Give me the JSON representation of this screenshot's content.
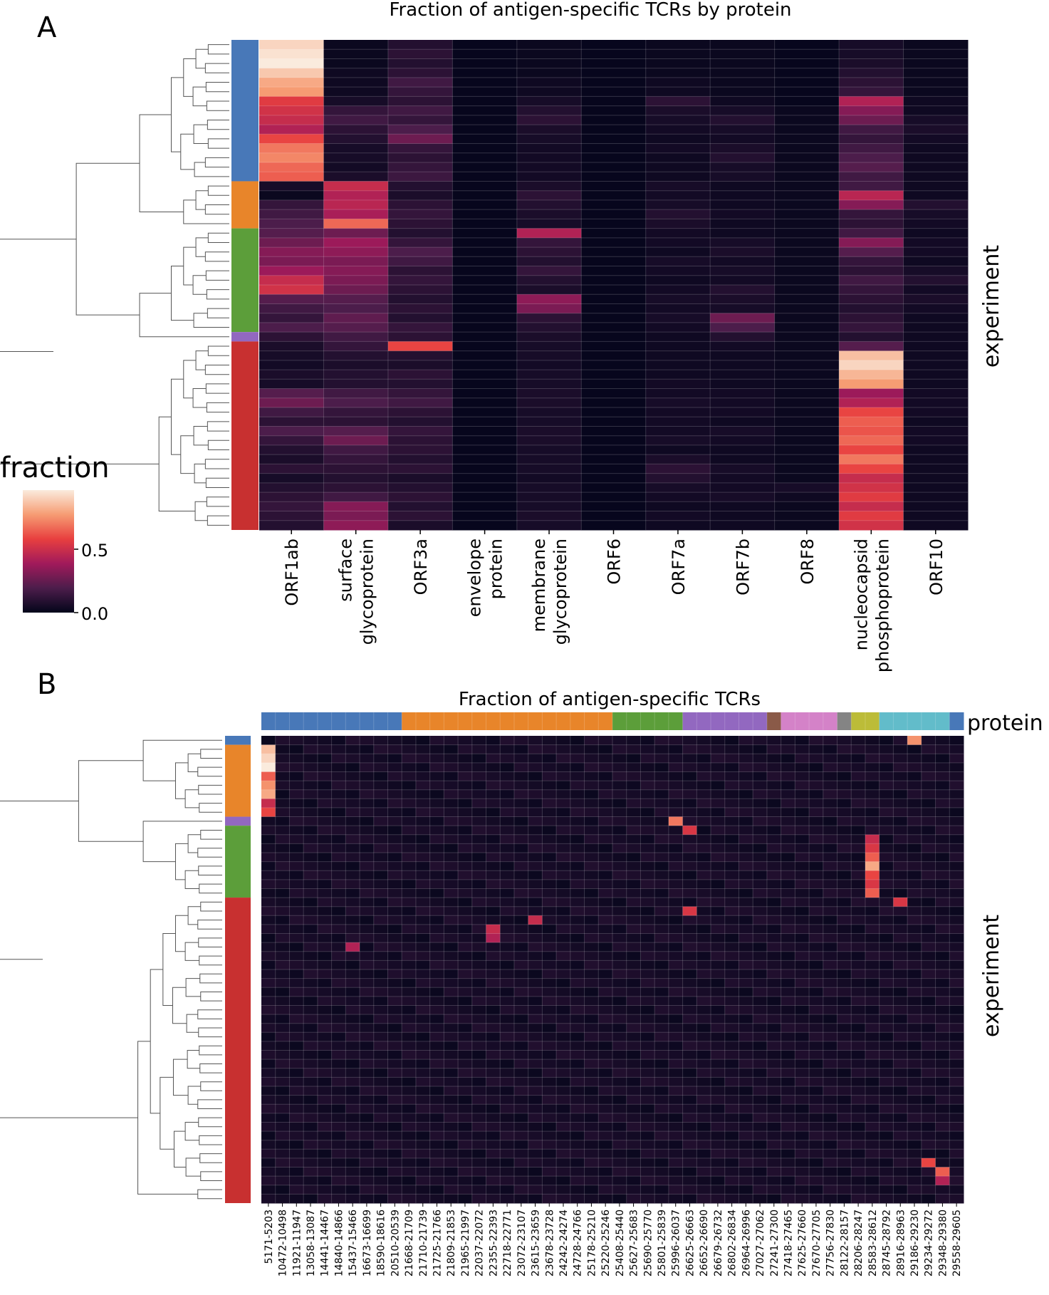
{
  "panels": {
    "a_label": "A",
    "b_label": "B"
  },
  "colorbar": {
    "title": "fraction",
    "ticks": [
      "0.5",
      "0.0"
    ],
    "stops": [
      "#03051a",
      "#4c1d4b",
      "#a11a5b",
      "#e83f3f",
      "#f69c73",
      "#faebdd"
    ]
  },
  "chart_data": [
    {
      "type": "heatmap",
      "title": "Fraction of antigen-specific TCRs by protein",
      "ylabel": "experiment",
      "categories": [
        "ORF1ab",
        "surface glycoprotein",
        "ORF3a",
        "envelope protein",
        "membrane glycoprotein",
        "ORF6",
        "ORF7a",
        "ORF7b",
        "ORF8",
        "nucleocapsid phosphoprotein",
        "ORF10"
      ],
      "tick_labels": [
        [
          "ORF1ab"
        ],
        [
          "surface",
          "glycoprotein"
        ],
        [
          "ORF3a"
        ],
        [
          "envelope",
          "protein"
        ],
        [
          "membrane",
          "glycoprotein"
        ],
        [
          "ORF6"
        ],
        [
          "ORF7a"
        ],
        [
          "ORF7b"
        ],
        [
          "ORF8"
        ],
        [
          "nucleocapsid",
          "phosphoprotein"
        ],
        [
          "ORF10"
        ]
      ],
      "row_count": 52,
      "clusters": [
        {
          "color": "#4878b8",
          "rows": 15
        },
        {
          "color": "#e8852a",
          "rows": 5
        },
        {
          "color": "#5c9e3a",
          "rows": 11
        },
        {
          "color": "#9268c0",
          "rows": 1
        },
        {
          "color": "#c83030",
          "rows": 20
        }
      ],
      "values": [
        [
          0.85,
          0.02,
          0.08,
          0.01,
          0.02,
          0.01,
          0.02,
          0.02,
          0.01,
          0.05,
          0.02
        ],
        [
          0.88,
          0.02,
          0.1,
          0.01,
          0.02,
          0.01,
          0.02,
          0.02,
          0.01,
          0.05,
          0.02
        ],
        [
          0.9,
          0.02,
          0.08,
          0.01,
          0.02,
          0.01,
          0.02,
          0.02,
          0.01,
          0.06,
          0.02
        ],
        [
          0.82,
          0.03,
          0.1,
          0.01,
          0.02,
          0.01,
          0.02,
          0.02,
          0.01,
          0.08,
          0.02
        ],
        [
          0.75,
          0.03,
          0.15,
          0.01,
          0.03,
          0.01,
          0.03,
          0.02,
          0.01,
          0.1,
          0.02
        ],
        [
          0.72,
          0.03,
          0.12,
          0.01,
          0.03,
          0.01,
          0.03,
          0.02,
          0.01,
          0.12,
          0.02
        ],
        [
          0.52,
          0.05,
          0.1,
          0.01,
          0.05,
          0.01,
          0.1,
          0.03,
          0.01,
          0.4,
          0.03
        ],
        [
          0.48,
          0.12,
          0.15,
          0.01,
          0.08,
          0.01,
          0.06,
          0.05,
          0.02,
          0.3,
          0.03
        ],
        [
          0.45,
          0.15,
          0.12,
          0.01,
          0.1,
          0.01,
          0.05,
          0.08,
          0.02,
          0.25,
          0.05
        ],
        [
          0.4,
          0.1,
          0.18,
          0.01,
          0.06,
          0.01,
          0.04,
          0.05,
          0.02,
          0.15,
          0.06
        ],
        [
          0.55,
          0.08,
          0.25,
          0.01,
          0.05,
          0.01,
          0.03,
          0.04,
          0.02,
          0.12,
          0.04
        ],
        [
          0.65,
          0.05,
          0.12,
          0.01,
          0.04,
          0.01,
          0.04,
          0.06,
          0.02,
          0.15,
          0.03
        ],
        [
          0.68,
          0.05,
          0.1,
          0.01,
          0.04,
          0.01,
          0.03,
          0.08,
          0.02,
          0.18,
          0.03
        ],
        [
          0.62,
          0.04,
          0.12,
          0.01,
          0.04,
          0.01,
          0.03,
          0.05,
          0.02,
          0.2,
          0.03
        ],
        [
          0.6,
          0.06,
          0.14,
          0.01,
          0.04,
          0.01,
          0.03,
          0.05,
          0.02,
          0.15,
          0.03
        ],
        [
          0.05,
          0.45,
          0.08,
          0.01,
          0.06,
          0.01,
          0.05,
          0.03,
          0.02,
          0.15,
          0.03
        ],
        [
          0.02,
          0.4,
          0.06,
          0.01,
          0.1,
          0.01,
          0.04,
          0.03,
          0.02,
          0.42,
          0.03
        ],
        [
          0.12,
          0.42,
          0.1,
          0.01,
          0.08,
          0.01,
          0.05,
          0.03,
          0.02,
          0.3,
          0.08
        ],
        [
          0.15,
          0.38,
          0.12,
          0.01,
          0.06,
          0.01,
          0.08,
          0.04,
          0.02,
          0.12,
          0.05
        ],
        [
          0.18,
          0.62,
          0.1,
          0.01,
          0.05,
          0.01,
          0.06,
          0.03,
          0.02,
          0.1,
          0.04
        ],
        [
          0.2,
          0.25,
          0.08,
          0.01,
          0.4,
          0.01,
          0.04,
          0.03,
          0.02,
          0.15,
          0.03
        ],
        [
          0.25,
          0.35,
          0.12,
          0.01,
          0.12,
          0.01,
          0.04,
          0.05,
          0.02,
          0.3,
          0.04
        ],
        [
          0.3,
          0.32,
          0.18,
          0.01,
          0.1,
          0.01,
          0.03,
          0.06,
          0.02,
          0.2,
          0.04
        ],
        [
          0.28,
          0.28,
          0.15,
          0.01,
          0.08,
          0.01,
          0.05,
          0.04,
          0.02,
          0.12,
          0.03
        ],
        [
          0.35,
          0.3,
          0.1,
          0.01,
          0.12,
          0.01,
          0.04,
          0.05,
          0.02,
          0.1,
          0.05
        ],
        [
          0.45,
          0.28,
          0.12,
          0.01,
          0.08,
          0.01,
          0.03,
          0.04,
          0.02,
          0.15,
          0.08
        ],
        [
          0.48,
          0.25,
          0.1,
          0.01,
          0.06,
          0.01,
          0.04,
          0.08,
          0.02,
          0.12,
          0.04
        ],
        [
          0.2,
          0.2,
          0.08,
          0.01,
          0.32,
          0.01,
          0.05,
          0.06,
          0.02,
          0.1,
          0.06
        ],
        [
          0.15,
          0.18,
          0.1,
          0.01,
          0.28,
          0.01,
          0.04,
          0.05,
          0.02,
          0.08,
          0.04
        ],
        [
          0.12,
          0.22,
          0.08,
          0.01,
          0.1,
          0.01,
          0.05,
          0.25,
          0.02,
          0.1,
          0.03
        ],
        [
          0.18,
          0.2,
          0.12,
          0.01,
          0.08,
          0.01,
          0.04,
          0.18,
          0.02,
          0.12,
          0.03
        ],
        [
          0.1,
          0.15,
          0.1,
          0.01,
          0.06,
          0.01,
          0.03,
          0.08,
          0.02,
          0.08,
          0.03
        ],
        [
          0.06,
          0.12,
          0.55,
          0.01,
          0.05,
          0.01,
          0.03,
          0.04,
          0.02,
          0.2,
          0.03
        ],
        [
          0.05,
          0.08,
          0.08,
          0.01,
          0.05,
          0.01,
          0.03,
          0.03,
          0.02,
          0.8,
          0.03
        ],
        [
          0.04,
          0.06,
          0.06,
          0.01,
          0.04,
          0.01,
          0.03,
          0.03,
          0.02,
          0.85,
          0.03
        ],
        [
          0.06,
          0.08,
          0.1,
          0.01,
          0.05,
          0.01,
          0.03,
          0.03,
          0.02,
          0.78,
          0.03
        ],
        [
          0.05,
          0.08,
          0.08,
          0.01,
          0.05,
          0.01,
          0.04,
          0.03,
          0.02,
          0.72,
          0.03
        ],
        [
          0.2,
          0.15,
          0.12,
          0.01,
          0.06,
          0.01,
          0.04,
          0.04,
          0.02,
          0.35,
          0.04
        ],
        [
          0.25,
          0.18,
          0.15,
          0.01,
          0.06,
          0.01,
          0.05,
          0.04,
          0.02,
          0.4,
          0.04
        ],
        [
          0.15,
          0.12,
          0.1,
          0.01,
          0.05,
          0.01,
          0.04,
          0.04,
          0.02,
          0.55,
          0.04
        ],
        [
          0.1,
          0.1,
          0.08,
          0.01,
          0.05,
          0.01,
          0.04,
          0.03,
          0.02,
          0.6,
          0.03
        ],
        [
          0.18,
          0.2,
          0.12,
          0.01,
          0.06,
          0.01,
          0.04,
          0.05,
          0.02,
          0.58,
          0.04
        ],
        [
          0.12,
          0.25,
          0.1,
          0.01,
          0.06,
          0.01,
          0.05,
          0.04,
          0.02,
          0.62,
          0.04
        ],
        [
          0.08,
          0.15,
          0.1,
          0.01,
          0.05,
          0.01,
          0.03,
          0.03,
          0.02,
          0.55,
          0.03
        ],
        [
          0.06,
          0.12,
          0.08,
          0.01,
          0.05,
          0.01,
          0.06,
          0.03,
          0.02,
          0.65,
          0.03
        ],
        [
          0.1,
          0.1,
          0.1,
          0.01,
          0.05,
          0.01,
          0.1,
          0.05,
          0.02,
          0.55,
          0.03
        ],
        [
          0.05,
          0.08,
          0.06,
          0.01,
          0.04,
          0.01,
          0.08,
          0.04,
          0.02,
          0.45,
          0.03
        ],
        [
          0.08,
          0.1,
          0.08,
          0.01,
          0.05,
          0.01,
          0.05,
          0.04,
          0.05,
          0.48,
          0.03
        ],
        [
          0.1,
          0.15,
          0.1,
          0.01,
          0.05,
          0.01,
          0.04,
          0.05,
          0.03,
          0.52,
          0.03
        ],
        [
          0.12,
          0.3,
          0.08,
          0.01,
          0.05,
          0.01,
          0.03,
          0.03,
          0.02,
          0.45,
          0.03
        ],
        [
          0.1,
          0.28,
          0.1,
          0.01,
          0.06,
          0.01,
          0.04,
          0.03,
          0.02,
          0.52,
          0.03
        ],
        [
          0.08,
          0.32,
          0.06,
          0.01,
          0.05,
          0.01,
          0.03,
          0.03,
          0.02,
          0.48,
          0.03
        ]
      ]
    },
    {
      "type": "heatmap",
      "title": "Fraction of antigen-specific TCRs",
      "protein_label": "protein",
      "ylabel": "experiment",
      "categories": [
        "5171-5203",
        "10472-10498",
        "11921-11947",
        "13058-13087",
        "14441-14467",
        "14840-14866",
        "15437-15466",
        "16673-16699",
        "18590-18616",
        "20510-20539",
        "21668-21709",
        "21710-21739",
        "21725-21766",
        "21809-21853",
        "21965-21997",
        "22037-22072",
        "22355-22393",
        "22718-22771",
        "23072-23107",
        "23615-23659",
        "23678-23728",
        "24242-24274",
        "24728-24766",
        "25178-25210",
        "25220-25246",
        "25408-25440",
        "25627-25683",
        "25690-25770",
        "25801-25839",
        "25996-26037",
        "26625-26663",
        "26652-26690",
        "26679-26732",
        "26802-26834",
        "26964-26996",
        "27027-27062",
        "27241-27300",
        "27418-27465",
        "27625-27660",
        "27670-27705",
        "27756-27830",
        "28122-28157",
        "28206-28247",
        "28583-28612",
        "28745-28792",
        "28916-28963",
        "29186-29230",
        "29234-29272",
        "29348-29380",
        "29558-29605"
      ],
      "protein_colors": [
        "#4878b8",
        "#4878b8",
        "#4878b8",
        "#4878b8",
        "#4878b8",
        "#4878b8",
        "#4878b8",
        "#4878b8",
        "#4878b8",
        "#4878b8",
        "#e8852a",
        "#e8852a",
        "#e8852a",
        "#e8852a",
        "#e8852a",
        "#e8852a",
        "#e8852a",
        "#e8852a",
        "#e8852a",
        "#e8852a",
        "#e8852a",
        "#e8852a",
        "#e8852a",
        "#e8852a",
        "#e8852a",
        "#5c9e3a",
        "#5c9e3a",
        "#5c9e3a",
        "#5c9e3a",
        "#5c9e3a",
        "#9268c0",
        "#9268c0",
        "#9268c0",
        "#9268c0",
        "#9268c0",
        "#9268c0",
        "#8a5a48",
        "#d482c8",
        "#d482c8",
        "#d482c8",
        "#d482c8",
        "#848484",
        "#bcbc38",
        "#bcbc38",
        "#62bcca",
        "#62bcca",
        "#62bcca",
        "#62bcca",
        "#62bcca",
        "#4878b8"
      ],
      "row_count": 52,
      "clusters": [
        {
          "color": "#4878b8",
          "rows": 1
        },
        {
          "color": "#e8852a",
          "rows": 8
        },
        {
          "color": "#9268c0",
          "rows": 1
        },
        {
          "color": "#5c9e3a",
          "rows": 8
        },
        {
          "color": "#c83030",
          "rows": 34
        }
      ],
      "hotspots": [
        {
          "row": 0,
          "col": 46,
          "value": 0.7
        },
        {
          "row": 1,
          "col": 0,
          "value": 0.8
        },
        {
          "row": 2,
          "col": 0,
          "value": 0.85
        },
        {
          "row": 3,
          "col": 0,
          "value": 0.9
        },
        {
          "row": 4,
          "col": 0,
          "value": 0.6
        },
        {
          "row": 5,
          "col": 0,
          "value": 0.7
        },
        {
          "row": 6,
          "col": 0,
          "value": 0.75
        },
        {
          "row": 7,
          "col": 0,
          "value": 0.45
        },
        {
          "row": 8,
          "col": 0,
          "value": 0.55
        },
        {
          "row": 9,
          "col": 29,
          "value": 0.65
        },
        {
          "row": 10,
          "col": 30,
          "value": 0.5
        },
        {
          "row": 11,
          "col": 43,
          "value": 0.45
        },
        {
          "row": 12,
          "col": 43,
          "value": 0.5
        },
        {
          "row": 13,
          "col": 43,
          "value": 0.6
        },
        {
          "row": 14,
          "col": 43,
          "value": 0.75
        },
        {
          "row": 15,
          "col": 43,
          "value": 0.55
        },
        {
          "row": 16,
          "col": 43,
          "value": 0.5
        },
        {
          "row": 17,
          "col": 43,
          "value": 0.6
        },
        {
          "row": 18,
          "col": 45,
          "value": 0.5
        },
        {
          "row": 19,
          "col": 30,
          "value": 0.5
        },
        {
          "row": 20,
          "col": 19,
          "value": 0.45
        },
        {
          "row": 21,
          "col": 16,
          "value": 0.45
        },
        {
          "row": 22,
          "col": 16,
          "value": 0.4
        },
        {
          "row": 23,
          "col": 6,
          "value": 0.4
        },
        {
          "row": 47,
          "col": 47,
          "value": 0.55
        },
        {
          "row": 48,
          "col": 48,
          "value": 0.6
        },
        {
          "row": 49,
          "col": 48,
          "value": 0.4
        }
      ]
    }
  ]
}
